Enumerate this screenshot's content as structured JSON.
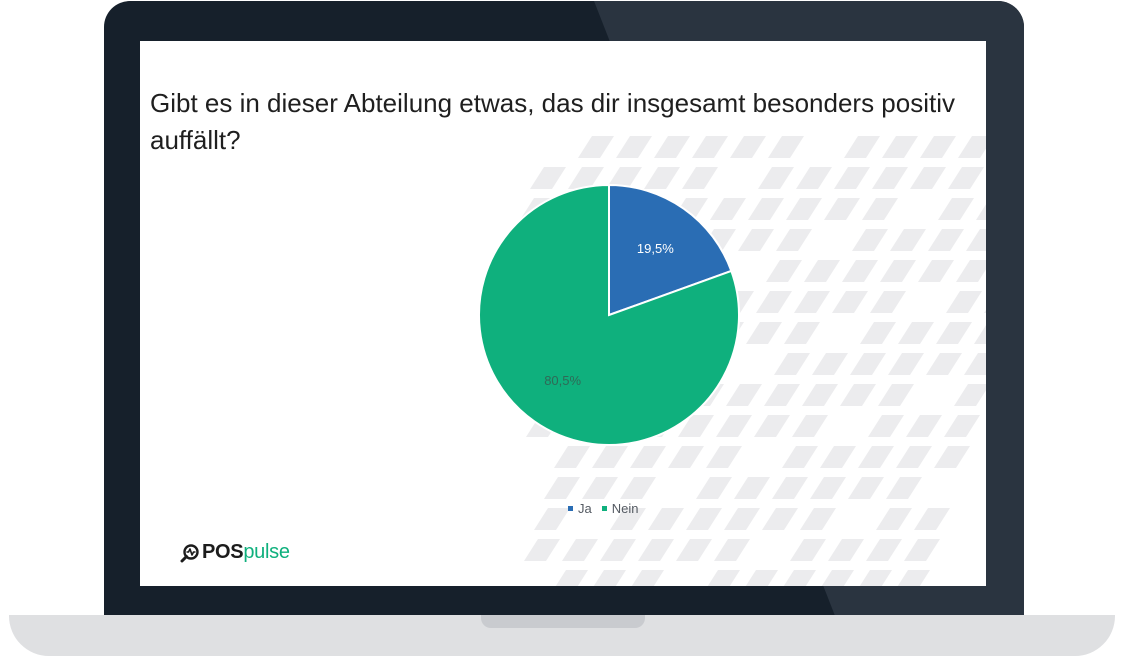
{
  "question": "Gibt es in dieser Abteilung etwas, das dir insgesamt besonders positiv auffällt?",
  "brand": {
    "strong": "POS",
    "light": "pulse",
    "icon": "magnifier-pulse-icon",
    "accent": "#0fb07d"
  },
  "colors": {
    "bezel": "#16202b",
    "bezel_highlight": "#2a3440",
    "base": "#dfe0e2"
  },
  "chart_data": {
    "type": "pie",
    "title": "Gibt es in dieser Abteilung etwas, das dir insgesamt besonders positiv auffällt?",
    "categories": [
      "Ja",
      "Nein"
    ],
    "values": [
      19.5,
      80.5
    ],
    "labels": [
      "19,5%",
      "80,5%"
    ],
    "colors": [
      "#2a6db4",
      "#0fb07d"
    ],
    "legend": "bottom"
  }
}
